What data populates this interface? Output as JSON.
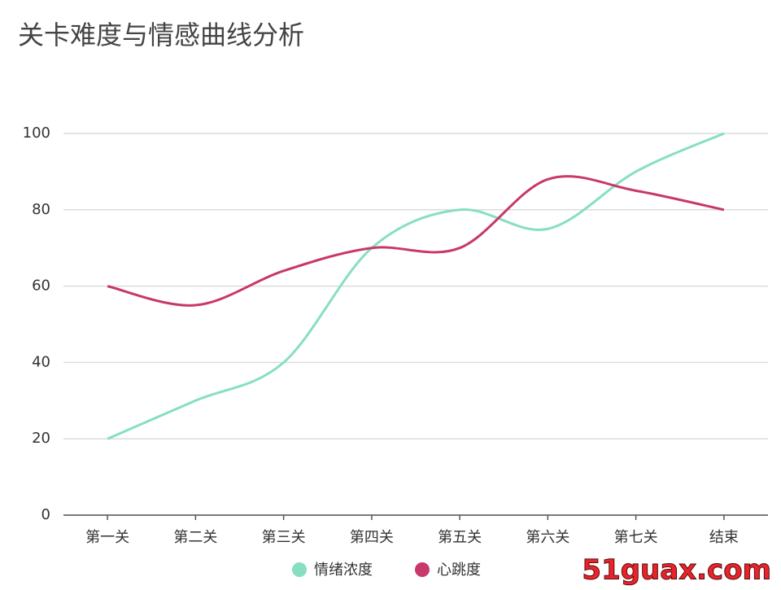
{
  "chart_data": {
    "type": "line",
    "title": "关卡难度与情感曲线分析",
    "categories": [
      "第一关",
      "第二关",
      "第三关",
      "第四关",
      "第五关",
      "第六关",
      "第七关",
      "结束"
    ],
    "series": [
      {
        "name": "情绪浓度",
        "color": "#86dfc2",
        "values": [
          20,
          30,
          40,
          70,
          80,
          75,
          90,
          100
        ]
      },
      {
        "name": "心跳度",
        "color": "#c8386a",
        "values": [
          60,
          55,
          64,
          70,
          70,
          88,
          85,
          80
        ]
      }
    ],
    "ylim": [
      0,
      100
    ],
    "yticks": [
      0,
      20,
      40,
      60,
      80,
      100
    ],
    "grid": true,
    "smooth": true,
    "legend": "bottom",
    "watermark": "51guax.com"
  }
}
